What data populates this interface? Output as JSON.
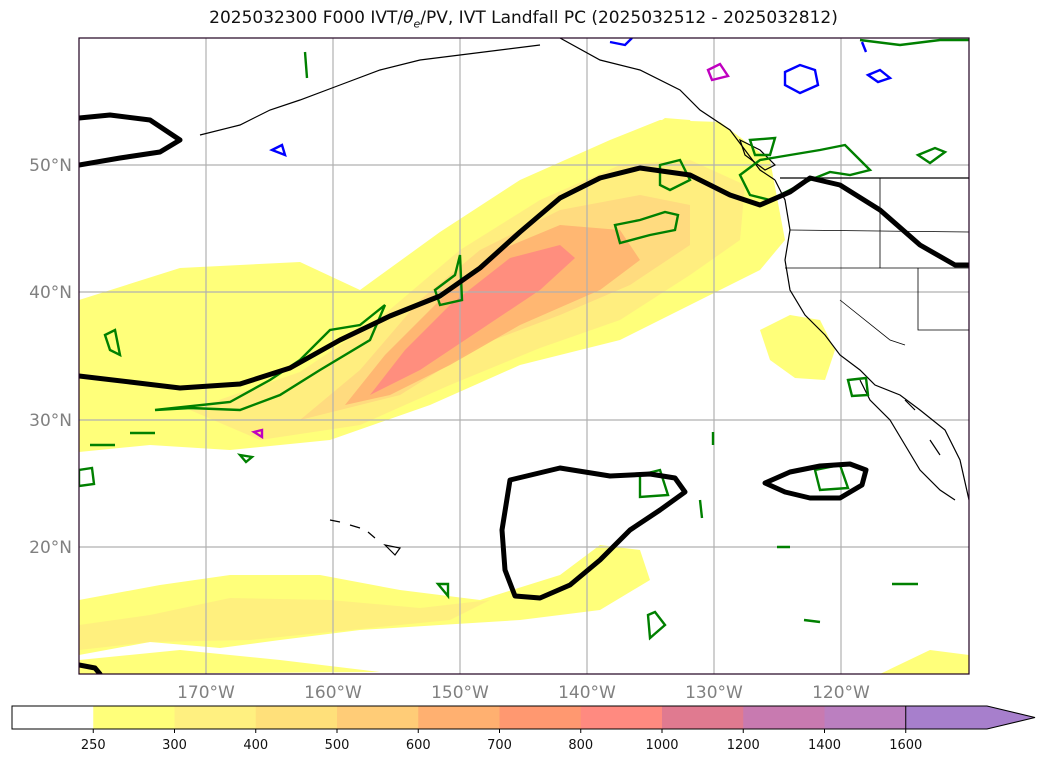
{
  "title": {
    "prefix": "2025032300 F000 IVT/",
    "theta_symbol": "θ",
    "theta_sub": "e",
    "suffix": "/PV, IVT Landfall PC (2025032512 - 2025032812)"
  },
  "map": {
    "lat_labels": [
      "50°N",
      "40°N",
      "30°N",
      "20°N"
    ],
    "lon_labels": [
      "170°W",
      "160°W",
      "150°W",
      "140°W",
      "130°W",
      "120°W"
    ],
    "colors": {
      "land_line": "#000000",
      "ivt_pc_contour": "#000000",
      "green_contour": "#008000",
      "blue_contour": "#0000ff",
      "magenta_contour": "#c000c0",
      "grid": "#b0b0b0"
    }
  },
  "colorbar": {
    "levels": [
      "250",
      "300",
      "400",
      "500",
      "600",
      "700",
      "800",
      "1000",
      "1200",
      "1400",
      "1600"
    ],
    "colors": [
      "#ffffff",
      "#ffff7a",
      "#fff080",
      "#ffe07a",
      "#ffcc77",
      "#ffb070",
      "#ff9870",
      "#ff8a80",
      "#e07a90",
      "#c87ab0",
      "#bb7fc0",
      "#a77fcc"
    ],
    "extend": "max"
  }
}
